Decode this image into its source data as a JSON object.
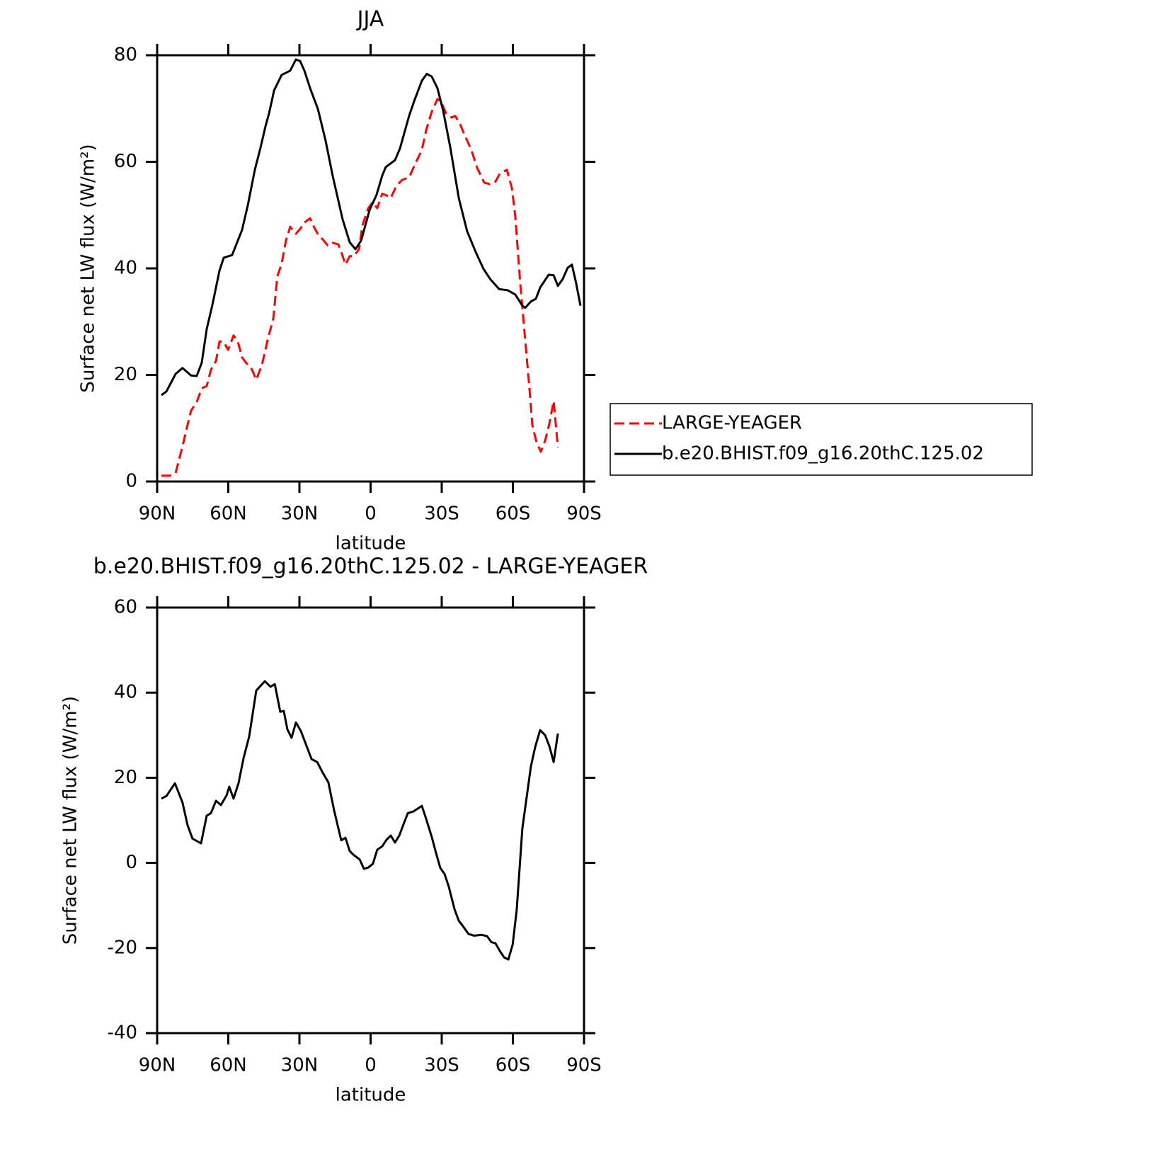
{
  "chart_data": [
    {
      "type": "line",
      "title": "JJA",
      "y_label": "Surface net LW flux (W/m²)",
      "x_label": "latitude",
      "xlim": [
        90,
        -90
      ],
      "xticks": [
        {
          "value": 90,
          "label": "90N"
        },
        {
          "value": 60,
          "label": "60N"
        },
        {
          "value": 30,
          "label": "30N"
        },
        0,
        {
          "value": -30,
          "label": "30S"
        },
        {
          "value": -60,
          "label": "60S"
        },
        {
          "value": -90,
          "label": "90S"
        }
      ],
      "ylim": [
        0,
        80
      ],
      "yticks": [
        0,
        20,
        40,
        60,
        80
      ],
      "grid": false,
      "legend": "right",
      "series": [
        {
          "name": "LARGE-YEAGER",
          "color": "#ff0000",
          "dash": "dashed",
          "x": [
            88.2,
            84.6,
            82.2,
            79.3,
            77.2,
            75.7,
            73.3,
            71.2,
            69.1,
            67.3,
            65.2,
            63.7,
            61.9,
            60.1,
            57.8,
            56.0,
            54.2,
            51.8,
            50.0,
            48.2,
            45.8,
            43.4,
            41.0,
            39.3,
            37.5,
            35.7,
            33.9,
            31.5,
            29.7,
            27.9,
            25.5,
            23.7,
            21.9,
            20.1,
            18.1,
            16.0,
            13.6,
            12.4,
            10.6,
            8.8,
            7.0,
            4.9,
            3.4,
            1.0,
            -0.8,
            -2.8,
            -4.9,
            -6.7,
            -8.5,
            -10.9,
            -13.3,
            -16.3,
            -18.7,
            -21.6,
            -23.4,
            -25.8,
            -28.2,
            -29.9,
            -31.8,
            -34.2,
            -35.7,
            -37.8,
            -40.1,
            -42.5,
            -44.9,
            -47.9,
            -50.3,
            -52.7,
            -54.5,
            -57.5,
            -59.6,
            -61.0,
            -63.1,
            -65.2,
            -67.0,
            -68.2,
            -70.0,
            -71.8,
            -73.6,
            -75.4,
            -77.2,
            -79.0
          ],
          "values": [
            1.1,
            1.1,
            1.6,
            6.6,
            10.6,
            13.3,
            14.9,
            17.5,
            17.9,
            21,
            22.6,
            26.3,
            26.2,
            24.7,
            27.4,
            26.3,
            23.3,
            21.9,
            21,
            19.1,
            21.9,
            26.6,
            30.6,
            38.5,
            40.9,
            45.2,
            47.8,
            46.5,
            47.4,
            48.6,
            49.4,
            47.6,
            46.2,
            45.4,
            44.3,
            44.8,
            44.5,
            43.1,
            40.7,
            42.3,
            42.3,
            43.6,
            48.1,
            51.3,
            52.4,
            51.3,
            54,
            53.7,
            53.2,
            55.5,
            56.6,
            57.1,
            59.5,
            62.2,
            65.9,
            69.4,
            71.8,
            71.1,
            69.1,
            68.3,
            68.6,
            67,
            64.6,
            62.2,
            58.9,
            56.1,
            55.8,
            56.3,
            57.8,
            58.5,
            55,
            49.8,
            37.2,
            26.6,
            17.3,
            10.6,
            7.3,
            5.6,
            7.7,
            10.9,
            15.1,
            6.4
          ]
        },
        {
          "name": "b.e20.BHIST.f09_g16.20thC.125.02",
          "color": "#000000",
          "dash": "solid",
          "x": [
            88.2,
            86.1,
            82.2,
            79.3,
            75.7,
            73.3,
            71.2,
            69.1,
            66.7,
            63.7,
            61.9,
            58.4,
            54.2,
            51.8,
            48.8,
            46.4,
            44.3,
            42.8,
            40.7,
            37.5,
            33.9,
            31.5,
            29.7,
            27.9,
            25.5,
            22.2,
            19.0,
            16.0,
            11.8,
            8.8,
            6.4,
            4.0,
            0.4,
            -2.5,
            -4.9,
            -6.4,
            -10.3,
            -12.4,
            -16.3,
            -18.4,
            -21.6,
            -23.7,
            -25.8,
            -28.2,
            -30.6,
            -33.6,
            -37.2,
            -40.7,
            -44.3,
            -47.6,
            -50.6,
            -54.2,
            -57.8,
            -61.0,
            -64.0,
            -65.2,
            -67.6,
            -69.7,
            -71.5,
            -75.1,
            -77.2,
            -79.0,
            -81.0,
            -83.1,
            -84.9,
            -86.7,
            -88.5
          ],
          "values": [
            16.2,
            16.9,
            20.2,
            21.3,
            19.9,
            19.8,
            22.3,
            28.6,
            33.2,
            39.6,
            42,
            42.5,
            47.2,
            51.8,
            58.5,
            62.7,
            66.7,
            69.1,
            73.4,
            76.3,
            77.1,
            79.2,
            78.9,
            77.1,
            73.8,
            69.9,
            64,
            57.4,
            49.2,
            44.9,
            43.6,
            45.2,
            51,
            53.8,
            57.4,
            59,
            60.3,
            62.5,
            68.7,
            71.4,
            75.2,
            76.5,
            76,
            73.8,
            69.6,
            62.7,
            53.2,
            47,
            43.1,
            39.9,
            37.9,
            36.1,
            35.9,
            35.1,
            33,
            32.6,
            33.8,
            34.3,
            36.4,
            38.8,
            38.7,
            36.7,
            38,
            40.1,
            40.7,
            37.2,
            33
          ]
        }
      ]
    },
    {
      "type": "line",
      "title": "b.e20.BHIST.f09_g16.20thC.125.02 - LARGE-YEAGER",
      "y_label": "Surface net LW flux (W/m²)",
      "x_label": "latitude",
      "xlim": [
        90,
        -90
      ],
      "xticks": [
        {
          "value": 90,
          "label": "90N"
        },
        {
          "value": 60,
          "label": "60N"
        },
        {
          "value": 30,
          "label": "30N"
        },
        0,
        {
          "value": -30,
          "label": "30S"
        },
        {
          "value": -60,
          "label": "60S"
        },
        {
          "value": -90,
          "label": "90S"
        }
      ],
      "ylim": [
        -40,
        60
      ],
      "yticks": [
        -40,
        -20,
        0,
        20,
        40,
        60
      ],
      "grid": false,
      "series": [
        {
          "color": "#000000",
          "dash": "solid",
          "x": [
            88.2,
            86.1,
            82.5,
            79.3,
            77.2,
            75.1,
            71.5,
            69.1,
            67.3,
            65.2,
            63.1,
            60.7,
            59.6,
            57.8,
            55.7,
            53.6,
            51.2,
            48.2,
            44.6,
            42.2,
            40.4,
            38.1,
            36.6,
            35.1,
            33.3,
            31.5,
            29.4,
            24.9,
            22.5,
            20.1,
            17.8,
            15.4,
            12.4,
            10.6,
            8.8,
            7.0,
            4.6,
            2.8,
            1.0,
            -1.0,
            -2.8,
            -4.9,
            -6.7,
            -8.5,
            -10.3,
            -12.1,
            -13.9,
            -15.7,
            -18.1,
            -21.6,
            -23.4,
            -25.8,
            -27.6,
            -29.4,
            -31.2,
            -33.0,
            -35.4,
            -37.2,
            -39.0,
            -41.3,
            -43.7,
            -46.7,
            -49.1,
            -50.9,
            -52.7,
            -54.5,
            -56.3,
            -58.1,
            -59.9,
            -61.6,
            -64.0,
            -67.6,
            -69.4,
            -71.5,
            -73.6,
            -75.4,
            -77.2,
            -79.0
          ],
          "values": [
            15.1,
            15.7,
            18.7,
            14.2,
            8.9,
            5.7,
            4.6,
            11.1,
            11.7,
            14.6,
            13.6,
            15.9,
            17.9,
            15.1,
            18.7,
            24.5,
            29.7,
            40.5,
            42.7,
            41.4,
            42,
            35.5,
            35.7,
            31.4,
            29.4,
            33,
            31,
            24.4,
            23.7,
            21.1,
            18.9,
            12.4,
            5.3,
            5.9,
            2.8,
            1.8,
            0.8,
            -1.4,
            -1.1,
            -0.2,
            3.1,
            3.9,
            5.4,
            6.4,
            4.8,
            6.4,
            9.1,
            11.7,
            12.1,
            13.4,
            10.4,
            6.1,
            2.3,
            -1.2,
            -2.6,
            -5.6,
            -10.9,
            -13.6,
            -14.9,
            -16.7,
            -17.1,
            -16.9,
            -17.2,
            -18.6,
            -18.9,
            -20.7,
            -22.2,
            -22.7,
            -19.2,
            -11.1,
            8.1,
            22.7,
            27.2,
            31.2,
            30,
            27.4,
            23.7,
            30.4
          ]
        }
      ]
    }
  ]
}
